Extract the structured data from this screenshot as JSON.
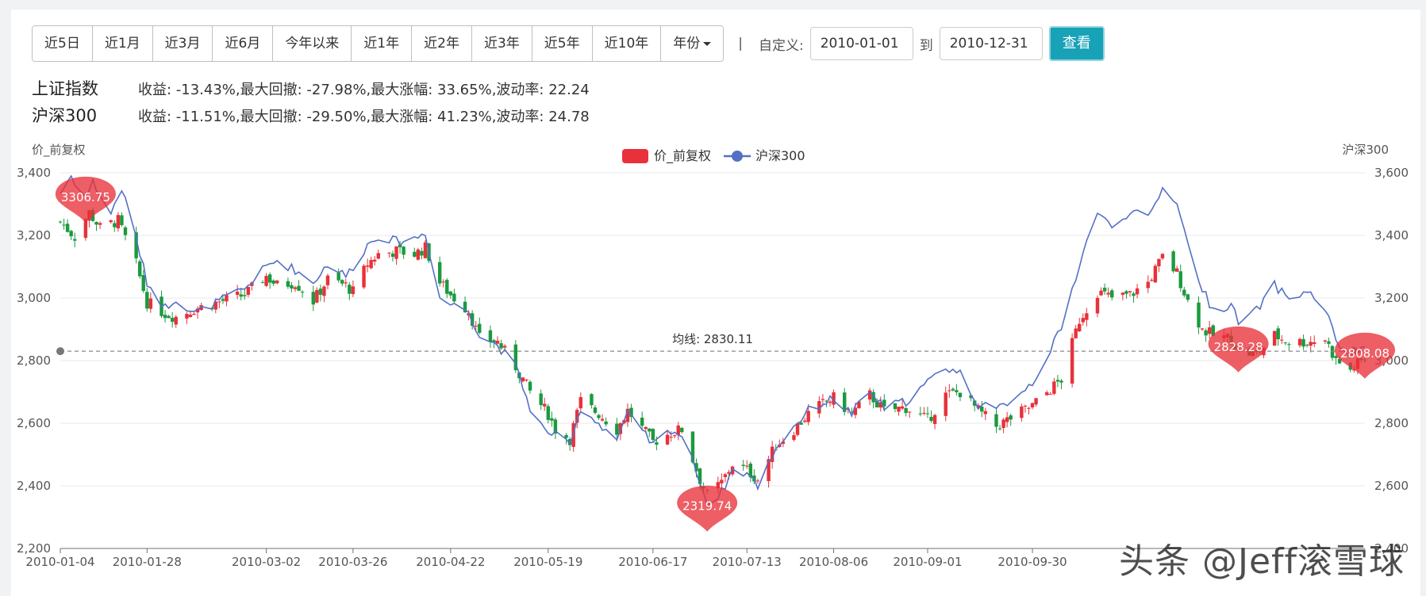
{
  "toolbar": {
    "ranges": [
      "近5日",
      "近1月",
      "近3月",
      "近6月",
      "今年以来",
      "近1年",
      "近2年",
      "近3年",
      "近5年",
      "近10年"
    ],
    "year_label": "年份",
    "separator": "|",
    "custom_label": "自定义:",
    "start_date": "2010-01-01",
    "to_label": "到",
    "end_date": "2010-12-31",
    "view_label": "查看"
  },
  "stats": [
    {
      "name": "上证指数",
      "text": "收益: -13.43%,最大回撤: -27.98%,最大涨幅: 33.65%,波动率: 22.24"
    },
    {
      "name": "沪深300",
      "text": "收益: -11.51%,最大回撤: -29.50%,最大涨幅: 41.23%,波动率: 24.78"
    }
  ],
  "watermark": "头条 @Jeff滚雪球",
  "chart_data": {
    "type": "candlestick+line",
    "left_axis_label": "价_前复权",
    "right_axis_label": "沪深300",
    "legend": [
      {
        "name": "价_前复权",
        "color": "#e8313a"
      },
      {
        "name": "沪深300",
        "color": "#5470c6"
      }
    ],
    "legend_position": "top-center",
    "grid": true,
    "y_left": {
      "min": 2200,
      "max": 3400,
      "ticks": [
        "2,200",
        "2,400",
        "2,600",
        "2,800",
        "3,000",
        "3,200",
        "3,400"
      ]
    },
    "y_right": {
      "min": 2400,
      "max": 3600,
      "ticks": [
        "2,400",
        "2,600",
        "2,800",
        "3,000",
        "3,200",
        "3,400",
        "3,600"
      ]
    },
    "x_ticks": [
      "2010-01-04",
      "2010-01-28",
      "2010-03-02",
      "2010-03-26",
      "2010-04-22",
      "2010-05-19",
      "2010-06-17",
      "2010-07-13",
      "2010-08-06",
      "2010-09-01",
      "2010-09-30"
    ],
    "avg_line": {
      "label": "均线: 2830.11",
      "value": 2830.11
    },
    "mark_points": [
      {
        "label": "3306.75",
        "date": "2010-01-11",
        "value": 3306.75
      },
      {
        "label": "2319.74",
        "date": "2010-07-02",
        "value": 2319.74
      },
      {
        "label": "2828.28",
        "date": "2010-11-26",
        "value": 2828.28
      },
      {
        "label": "2808.08",
        "date": "2010-12-31",
        "value": 2808.08
      }
    ],
    "up_color": "#e8313a",
    "down_color": "#1b9a3f",
    "index_close": [
      [
        "2010-01-04",
        3243
      ],
      [
        "2010-01-08",
        3196
      ],
      [
        "2010-01-12",
        3273
      ],
      [
        "2010-01-15",
        3224
      ],
      [
        "2010-01-20",
        3247
      ],
      [
        "2010-01-25",
        3108
      ],
      [
        "2010-01-28",
        2986
      ],
      [
        "2010-02-02",
        2950
      ],
      [
        "2010-02-05",
        2940
      ],
      [
        "2010-02-10",
        2965
      ],
      [
        "2010-02-24",
        3010
      ],
      [
        "2010-03-02",
        3070
      ],
      [
        "2010-03-05",
        3040
      ],
      [
        "2010-03-10",
        3050
      ],
      [
        "2010-03-15",
        2990
      ],
      [
        "2010-03-19",
        3060
      ],
      [
        "2010-03-24",
        3040
      ],
      [
        "2010-03-26",
        3020
      ],
      [
        "2010-03-30",
        3110
      ],
      [
        "2010-04-02",
        3140
      ],
      [
        "2010-04-07",
        3150
      ],
      [
        "2010-04-12",
        3140
      ],
      [
        "2010-04-15",
        3160
      ],
      [
        "2010-04-19",
        3050
      ],
      [
        "2010-04-22",
        3010
      ],
      [
        "2010-04-27",
        2960
      ],
      [
        "2010-04-30",
        2870
      ],
      [
        "2010-05-05",
        2860
      ],
      [
        "2010-05-10",
        2780
      ],
      [
        "2010-05-14",
        2700
      ],
      [
        "2010-05-19",
        2630
      ],
      [
        "2010-05-21",
        2580
      ],
      [
        "2010-05-25",
        2550
      ],
      [
        "2010-05-28",
        2670
      ],
      [
        "2010-06-02",
        2630
      ],
      [
        "2010-06-07",
        2580
      ],
      [
        "2010-06-10",
        2640
      ],
      [
        "2010-06-17",
        2540
      ],
      [
        "2010-06-22",
        2570
      ],
      [
        "2010-06-25",
        2580
      ],
      [
        "2010-06-30",
        2420
      ],
      [
        "2010-07-02",
        2370
      ],
      [
        "2010-07-06",
        2410
      ],
      [
        "2010-07-09",
        2470
      ],
      [
        "2010-07-13",
        2450
      ],
      [
        "2010-07-16",
        2420
      ],
      [
        "2010-07-21",
        2530
      ],
      [
        "2010-07-26",
        2580
      ],
      [
        "2010-07-30",
        2630
      ],
      [
        "2010-08-04",
        2670
      ],
      [
        "2010-08-06",
        2680
      ],
      [
        "2010-08-11",
        2630
      ],
      [
        "2010-08-16",
        2690
      ],
      [
        "2010-08-20",
        2640
      ],
      [
        "2010-08-26",
        2650
      ],
      [
        "2010-09-01",
        2610
      ],
      [
        "2010-09-06",
        2690
      ],
      [
        "2010-09-10",
        2700
      ],
      [
        "2010-09-15",
        2640
      ],
      [
        "2010-09-20",
        2590
      ],
      [
        "2010-09-30",
        2656
      ],
      [
        "2010-10-08",
        2740
      ],
      [
        "2010-10-13",
        2930
      ],
      [
        "2010-10-18",
        3020
      ],
      [
        "2010-10-22",
        3000
      ],
      [
        "2010-10-27",
        3010
      ],
      [
        "2010-11-01",
        3050
      ],
      [
        "2010-11-05",
        3130
      ],
      [
        "2010-11-09",
        3080
      ],
      [
        "2010-11-12",
        2990
      ],
      [
        "2010-11-16",
        2900
      ],
      [
        "2010-11-19",
        2880
      ],
      [
        "2010-11-24",
        2870
      ],
      [
        "2010-11-26",
        2830
      ],
      [
        "2010-12-01",
        2820
      ],
      [
        "2010-12-06",
        2880
      ],
      [
        "2010-12-10",
        2860
      ],
      [
        "2010-12-15",
        2860
      ],
      [
        "2010-12-20",
        2870
      ],
      [
        "2010-12-23",
        2800
      ],
      [
        "2010-12-27",
        2770
      ],
      [
        "2010-12-31",
        2808
      ]
    ],
    "hs300_close": [
      [
        "2010-01-04",
        3535
      ],
      [
        "2010-01-07",
        3590
      ],
      [
        "2010-01-11",
        3520
      ],
      [
        "2010-01-13",
        3570
      ],
      [
        "2010-01-18",
        3470
      ],
      [
        "2010-01-21",
        3550
      ],
      [
        "2010-01-25",
        3390
      ],
      [
        "2010-01-28",
        3250
      ],
      [
        "2010-02-02",
        3170
      ],
      [
        "2010-02-05",
        3200
      ],
      [
        "2010-02-10",
        3150
      ],
      [
        "2010-02-24",
        3230
      ],
      [
        "2010-03-02",
        3300
      ],
      [
        "2010-03-05",
        3320
      ],
      [
        "2010-03-10",
        3290
      ],
      [
        "2010-03-15",
        3250
      ],
      [
        "2010-03-19",
        3310
      ],
      [
        "2010-03-24",
        3270
      ],
      [
        "2010-03-26",
        3300
      ],
      [
        "2010-03-30",
        3370
      ],
      [
        "2010-04-02",
        3400
      ],
      [
        "2010-04-07",
        3380
      ],
      [
        "2010-04-12",
        3390
      ],
      [
        "2010-04-15",
        3410
      ],
      [
        "2010-04-19",
        3200
      ],
      [
        "2010-04-22",
        3180
      ],
      [
        "2010-04-27",
        3160
      ],
      [
        "2010-04-30",
        3080
      ],
      [
        "2010-05-05",
        3050
      ],
      [
        "2010-05-10",
        2980
      ],
      [
        "2010-05-14",
        2850
      ],
      [
        "2010-05-19",
        2760
      ],
      [
        "2010-05-21",
        2780
      ],
      [
        "2010-05-25",
        2720
      ],
      [
        "2010-05-28",
        2850
      ],
      [
        "2010-06-02",
        2800
      ],
      [
        "2010-06-07",
        2750
      ],
      [
        "2010-06-10",
        2830
      ],
      [
        "2010-06-17",
        2730
      ],
      [
        "2010-06-22",
        2780
      ],
      [
        "2010-06-25",
        2760
      ],
      [
        "2010-06-30",
        2620
      ],
      [
        "2010-07-02",
        2540
      ],
      [
        "2010-07-06",
        2580
      ],
      [
        "2010-07-09",
        2650
      ],
      [
        "2010-07-13",
        2640
      ],
      [
        "2010-07-16",
        2600
      ],
      [
        "2010-07-21",
        2720
      ],
      [
        "2010-07-26",
        2790
      ],
      [
        "2010-07-30",
        2840
      ],
      [
        "2010-08-04",
        2870
      ],
      [
        "2010-08-06",
        2880
      ],
      [
        "2010-08-11",
        2830
      ],
      [
        "2010-08-16",
        2900
      ],
      [
        "2010-08-20",
        2850
      ],
      [
        "2010-08-26",
        2870
      ],
      [
        "2010-09-01",
        2930
      ],
      [
        "2010-09-06",
        2980
      ],
      [
        "2010-09-10",
        2960
      ],
      [
        "2010-09-15",
        2860
      ],
      [
        "2010-09-20",
        2840
      ],
      [
        "2010-09-30",
        2930
      ],
      [
        "2010-10-08",
        3100
      ],
      [
        "2010-10-13",
        3310
      ],
      [
        "2010-10-18",
        3480
      ],
      [
        "2010-10-22",
        3420
      ],
      [
        "2010-10-27",
        3480
      ],
      [
        "2010-11-01",
        3450
      ],
      [
        "2010-11-05",
        3550
      ],
      [
        "2010-11-09",
        3510
      ],
      [
        "2010-11-12",
        3370
      ],
      [
        "2010-11-16",
        3230
      ],
      [
        "2010-11-19",
        3160
      ],
      [
        "2010-11-24",
        3180
      ],
      [
        "2010-11-26",
        3120
      ],
      [
        "2010-12-01",
        3160
      ],
      [
        "2010-12-06",
        3240
      ],
      [
        "2010-12-10",
        3200
      ],
      [
        "2010-12-15",
        3220
      ],
      [
        "2010-12-20",
        3170
      ],
      [
        "2010-12-23",
        3060
      ],
      [
        "2010-12-27",
        3020
      ],
      [
        "2010-12-31",
        3050
      ]
    ]
  }
}
